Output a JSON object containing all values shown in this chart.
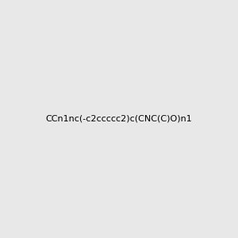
{
  "smiles": "CCn1nc(-c2ccccc2)c(CNC(C)O)n1",
  "title": "",
  "background_color": "#e8e8e8",
  "bond_color": "#000000",
  "atom_colors": {
    "N": "#0000ff",
    "O": "#ff0000",
    "C": "#000000",
    "H": "#708090"
  },
  "figsize": [
    3.0,
    3.0
  ],
  "dpi": 100
}
